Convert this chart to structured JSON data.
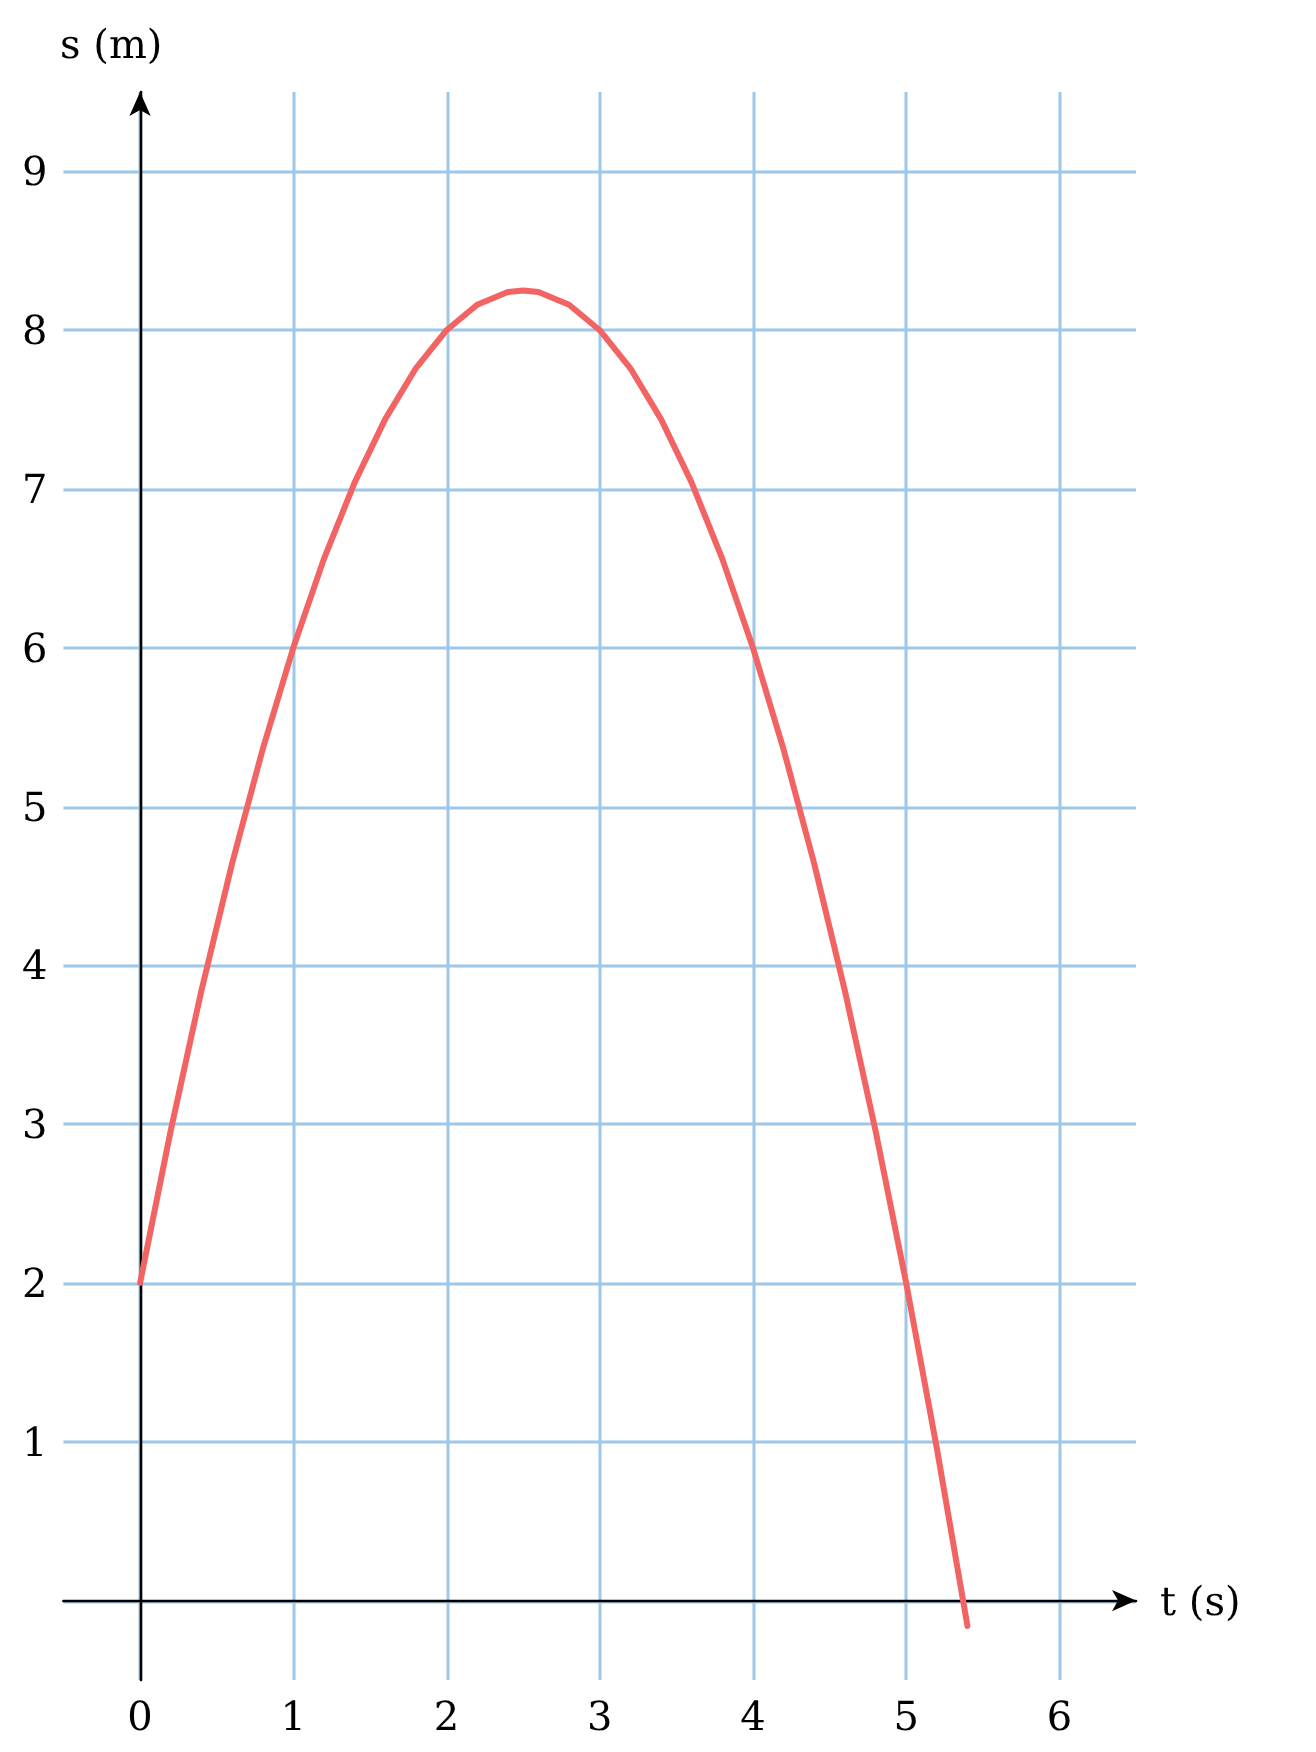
{
  "chart_data": {
    "type": "line",
    "xlabel": "t (s)",
    "ylabel": "s (m)",
    "x": [
      0,
      0.2,
      0.4,
      0.6,
      0.8,
      1,
      1.2,
      1.4,
      1.6,
      1.8,
      2,
      2.2,
      2.4,
      2.5,
      2.6,
      2.8,
      3,
      3.2,
      3.4,
      3.6,
      3.8,
      4,
      4.2,
      4.4,
      4.6,
      4.8,
      5,
      5.2,
      5.4
    ],
    "series": [
      {
        "color": "#f26464",
        "values": [
          2,
          2.96,
          3.84,
          4.64,
          5.36,
          6,
          6.56,
          7.04,
          7.44,
          7.76,
          8,
          8.16,
          8.24,
          8.25,
          8.24,
          8.16,
          8,
          7.76,
          7.44,
          7.04,
          6.56,
          6,
          5.36,
          4.64,
          3.84,
          2.96,
          2,
          0.96,
          -0.16
        ]
      }
    ],
    "xlim": [
      -0.5,
      6.5
    ],
    "ylim": [
      -0.5,
      9.5
    ],
    "xticks": [
      {
        "value": 0,
        "label": "0"
      },
      1,
      2,
      3,
      4,
      5,
      6
    ],
    "yticks": [
      {
        "value": 0,
        "label": null
      },
      1,
      2,
      3,
      4,
      5,
      6,
      7,
      8,
      9
    ],
    "grid": true,
    "marker": "none",
    "line_style": "solid"
  }
}
